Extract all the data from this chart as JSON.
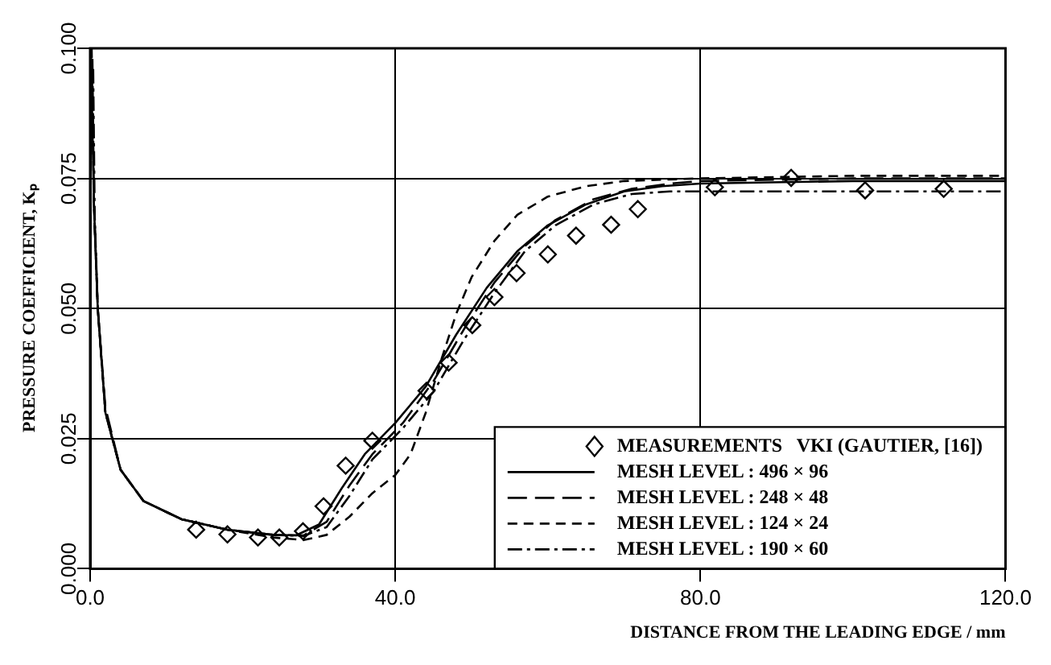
{
  "chart_data": {
    "type": "line",
    "xlabel": "DISTANCE FROM THE LEADING EDGE / mm",
    "ylabel": "PRESSURE COEFFICIENT, Kₚ",
    "xlim": [
      0,
      120
    ],
    "ylim": [
      0,
      0.1
    ],
    "xticks": [
      {
        "value": 0,
        "label": "0.0"
      },
      {
        "value": 40,
        "label": "40.0"
      },
      {
        "value": 80,
        "label": "80.0"
      },
      {
        "value": 120,
        "label": "120.0"
      }
    ],
    "yticks": [
      {
        "value": 0,
        "label": "0.000"
      },
      {
        "value": 0.025,
        "label": "0.025"
      },
      {
        "value": 0.05,
        "label": "0.050"
      },
      {
        "value": 0.075,
        "label": "0.075"
      },
      {
        "value": 0.1,
        "label": "0.100"
      }
    ],
    "grid": true,
    "legend": "bottom right",
    "series": [
      {
        "name": "MEASUREMENTS   VKI (GAUTIER, [16])",
        "type": "scatter",
        "marker": "diamond",
        "color": "#000000",
        "x": [
          13.9,
          18,
          22,
          24.8,
          27.9,
          30.6,
          33.5,
          37,
          44.1,
          47,
          50.1,
          53,
          55.9,
          60,
          63.7,
          68.3,
          71.8,
          81.9,
          91.9,
          101.6,
          111.9
        ],
        "values": [
          0.0075,
          0.0066,
          0.006,
          0.006,
          0.0072,
          0.012,
          0.0198,
          0.0246,
          0.0342,
          0.0396,
          0.0468,
          0.0522,
          0.0568,
          0.0604,
          0.064,
          0.0661,
          0.0691,
          0.0733,
          0.0751,
          0.0727,
          0.073
        ]
      },
      {
        "name": "MESH LEVEL : 496 × 96",
        "type": "line",
        "line_style": "solid",
        "color": "#000000",
        "x": [
          0.1,
          0.5,
          1,
          2,
          4,
          7,
          12,
          18,
          24,
          27,
          30,
          33,
          36,
          40,
          44,
          48,
          52,
          56,
          60,
          65,
          70,
          75,
          80,
          100,
          120
        ],
        "values": [
          0.1,
          0.07,
          0.05,
          0.03,
          0.019,
          0.013,
          0.0095,
          0.0075,
          0.0065,
          0.0064,
          0.0085,
          0.0155,
          0.022,
          0.028,
          0.035,
          0.045,
          0.054,
          0.061,
          0.066,
          0.07,
          0.0725,
          0.0735,
          0.074,
          0.0745,
          0.0745
        ]
      },
      {
        "name": "MESH LEVEL : 248 × 48",
        "type": "line",
        "line_style": "longdash",
        "color": "#000000",
        "x": [
          0.3,
          0.5,
          1,
          2,
          4,
          7,
          12,
          18,
          24,
          28,
          31,
          34,
          37,
          41,
          45,
          49,
          53,
          57,
          61,
          66,
          71,
          76,
          80,
          100,
          120
        ],
        "values": [
          0.098,
          0.07,
          0.05,
          0.031,
          0.019,
          0.013,
          0.0095,
          0.0075,
          0.0065,
          0.0064,
          0.009,
          0.016,
          0.022,
          0.028,
          0.036,
          0.046,
          0.055,
          0.062,
          0.067,
          0.071,
          0.073,
          0.074,
          0.0745,
          0.075,
          0.075
        ]
      },
      {
        "name": "MESH LEVEL : 124 × 24",
        "type": "line",
        "line_style": "dashed",
        "color": "#000000",
        "x": [
          0.2,
          0.5,
          1,
          2,
          4,
          7,
          12,
          18,
          24,
          28,
          31,
          34,
          37,
          40,
          42,
          44,
          46,
          48,
          50,
          53,
          56,
          60,
          65,
          70,
          80,
          100,
          120
        ],
        "values": [
          0.1,
          0.07,
          0.05,
          0.03,
          0.019,
          0.013,
          0.0095,
          0.0075,
          0.006,
          0.0055,
          0.0065,
          0.01,
          0.0145,
          0.018,
          0.022,
          0.03,
          0.04,
          0.049,
          0.056,
          0.063,
          0.068,
          0.0715,
          0.0735,
          0.0745,
          0.075,
          0.0755,
          0.0755
        ]
      },
      {
        "name": "MESH LEVEL : 190 × 60",
        "type": "line",
        "line_style": "dashdot",
        "color": "#000000",
        "x": [
          0.4,
          0.6,
          1,
          2,
          4,
          7,
          12,
          18,
          24,
          28,
          31,
          34,
          37,
          41,
          45,
          49,
          53,
          57,
          61,
          66,
          71,
          76,
          80,
          100,
          120
        ],
        "values": [
          0.096,
          0.068,
          0.05,
          0.03,
          0.019,
          0.013,
          0.0095,
          0.0075,
          0.0065,
          0.0063,
          0.008,
          0.014,
          0.021,
          0.027,
          0.034,
          0.044,
          0.053,
          0.061,
          0.066,
          0.07,
          0.072,
          0.0725,
          0.0725,
          0.0725,
          0.0725
        ]
      }
    ]
  }
}
